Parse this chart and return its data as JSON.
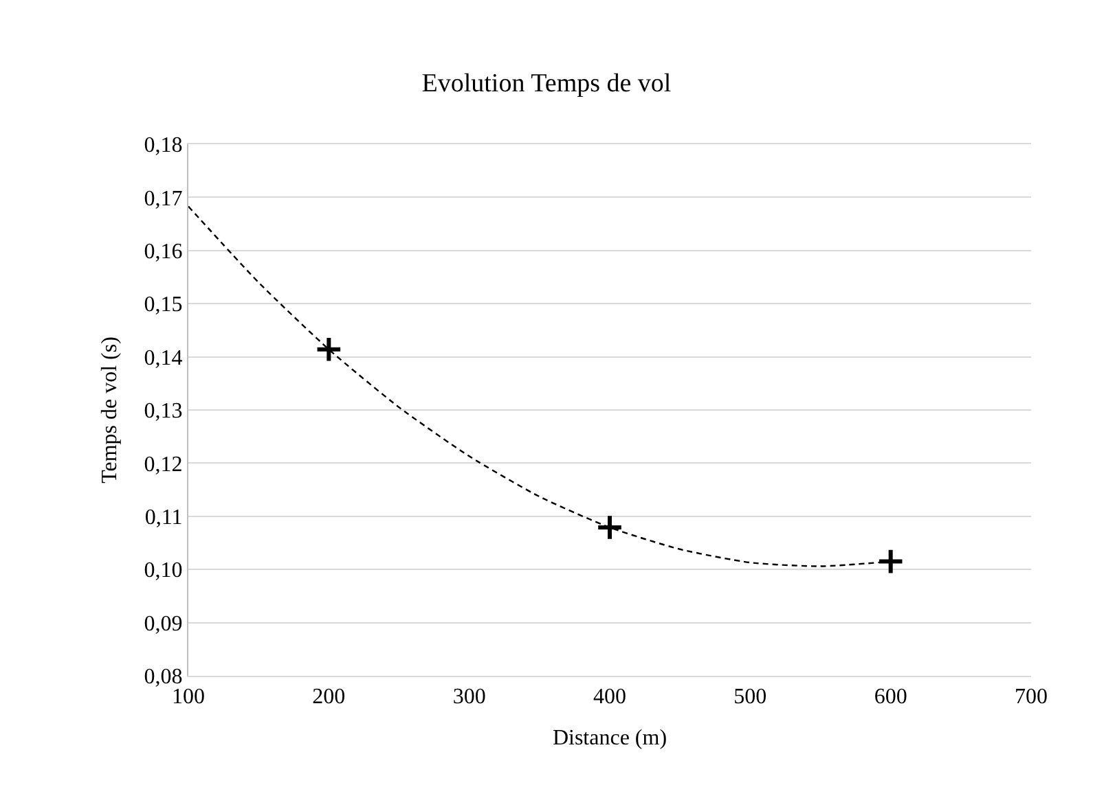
{
  "chart_data": {
    "type": "scatter",
    "title": "Evolution Temps de vol",
    "xlabel": "Distance (m)",
    "ylabel": "Temps de vol (s)",
    "x": [
      200,
      400,
      600
    ],
    "series": [
      {
        "color": "#000000",
        "marker": "cross",
        "values": [
          0.1414,
          0.1079,
          0.1015
        ]
      },
      {
        "type": "line",
        "color": "#000000",
        "marker": "none",
        "line_style": "dashed",
        "x": [
          100,
          150,
          200,
          250,
          300,
          350,
          400,
          450,
          500,
          550,
          600
        ],
        "values": [
          0.1683,
          0.154,
          0.1414,
          0.1305,
          0.1213,
          0.1137,
          0.1079,
          0.1038,
          0.1013,
          0.1006,
          0.1015
        ]
      }
    ],
    "xlim": [
      100,
      700
    ],
    "xticks": [
      100,
      200,
      300,
      400,
      500,
      600,
      700
    ],
    "ylim": [
      0.08,
      0.18
    ],
    "yticks": [
      {
        "value": 0.08,
        "label": "0,08"
      },
      {
        "value": 0.09,
        "label": "0,09"
      },
      {
        "value": 0.1,
        "label": "0,10"
      },
      {
        "value": 0.11,
        "label": "0,11"
      },
      {
        "value": 0.12,
        "label": "0,12"
      },
      {
        "value": 0.13,
        "label": "0,13"
      },
      {
        "value": 0.14,
        "label": "0,14"
      },
      {
        "value": 0.15,
        "label": "0,15"
      },
      {
        "value": 0.16,
        "label": "0,16"
      },
      {
        "value": 0.17,
        "label": "0,17"
      },
      {
        "value": 0.18,
        "label": "0,18"
      }
    ],
    "grid": "y"
  }
}
